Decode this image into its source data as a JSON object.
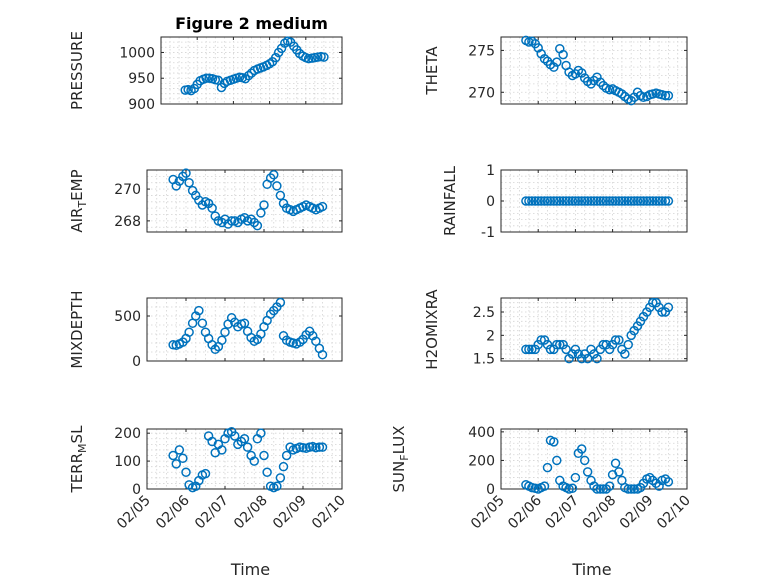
{
  "chart_data": [
    {
      "type": "scatter",
      "title": "Figure 2 medium",
      "ylabel": "PRESSURE",
      "ylabel_parts": [
        "PRESSURE"
      ],
      "xlim": [
        0,
        5
      ],
      "ylim": [
        900,
        1030
      ],
      "yticks": [
        900,
        950,
        1000
      ],
      "ytick_labels": [
        "900",
        "950",
        "1000"
      ],
      "xticks": [
        0,
        1,
        2,
        3,
        4,
        5
      ],
      "grid": true,
      "x": [
        0.67,
        0.75,
        0.83,
        0.92,
        1.0,
        1.08,
        1.17,
        1.25,
        1.33,
        1.42,
        1.5,
        1.58,
        1.67,
        1.75,
        1.83,
        1.92,
        2.0,
        2.08,
        2.17,
        2.25,
        2.33,
        2.42,
        2.5,
        2.58,
        2.67,
        2.75,
        2.83,
        2.92,
        3.0,
        3.08,
        3.17,
        3.25,
        3.33,
        3.42,
        3.5,
        3.58,
        3.67,
        3.75,
        3.83,
        3.92,
        4.0,
        4.08,
        4.17,
        4.25,
        4.33,
        4.42,
        4.5
      ],
      "y": [
        927,
        928,
        926,
        930,
        938,
        945,
        948,
        950,
        950,
        949,
        947,
        946,
        932,
        940,
        944,
        946,
        948,
        950,
        952,
        951,
        949,
        955,
        960,
        965,
        968,
        970,
        972,
        975,
        978,
        982,
        990,
        1000,
        1008,
        1018,
        1022,
        1020,
        1012,
        1005,
        998,
        993,
        990,
        988,
        989,
        990,
        991,
        992,
        991
      ]
    },
    {
      "type": "scatter",
      "ylabel": "THETA",
      "ylabel_parts": [
        "THETA"
      ],
      "xlim": [
        0,
        5
      ],
      "ylim": [
        268.6,
        276.6
      ],
      "yticks": [
        270,
        275
      ],
      "ytick_labels": [
        "270",
        "275"
      ],
      "xticks": [
        0,
        1,
        2,
        3,
        4,
        5
      ],
      "grid": true,
      "x": [
        0.67,
        0.75,
        0.83,
        0.92,
        1.0,
        1.08,
        1.17,
        1.25,
        1.33,
        1.42,
        1.5,
        1.58,
        1.67,
        1.75,
        1.83,
        1.92,
        2.0,
        2.08,
        2.17,
        2.25,
        2.33,
        2.42,
        2.5,
        2.58,
        2.67,
        2.75,
        2.83,
        2.92,
        3.0,
        3.08,
        3.17,
        3.25,
        3.33,
        3.42,
        3.5,
        3.58,
        3.67,
        3.75,
        3.83,
        3.92,
        4.0,
        4.08,
        4.17,
        4.25,
        4.33,
        4.42,
        4.5
      ],
      "y": [
        276.2,
        276.0,
        276.1,
        275.8,
        275.3,
        274.6,
        274.0,
        273.7,
        273.3,
        273.0,
        273.6,
        275.2,
        274.5,
        273.2,
        272.4,
        272.0,
        272.2,
        272.6,
        272.3,
        271.7,
        271.3,
        271.0,
        271.4,
        271.8,
        271.2,
        270.8,
        270.5,
        270.3,
        270.4,
        270.2,
        270.0,
        269.8,
        269.5,
        269.2,
        269.0,
        269.4,
        270.0,
        269.6,
        269.4,
        269.5,
        269.7,
        269.8,
        269.9,
        269.8,
        269.7,
        269.6,
        269.6
      ]
    },
    {
      "type": "scatter",
      "ylabel": "AIR_TEMP",
      "ylabel_parts": [
        "AIR",
        "T",
        "EMP"
      ],
      "xlim": [
        0,
        5
      ],
      "ylim": [
        267.3,
        271.2
      ],
      "yticks": [
        268,
        270
      ],
      "ytick_labels": [
        "268",
        "270"
      ],
      "xticks": [
        0,
        1,
        2,
        3,
        4,
        5
      ],
      "grid": true,
      "x": [
        0.67,
        0.75,
        0.83,
        0.92,
        1.0,
        1.08,
        1.17,
        1.25,
        1.33,
        1.42,
        1.5,
        1.58,
        1.67,
        1.75,
        1.83,
        1.92,
        2.0,
        2.08,
        2.17,
        2.25,
        2.33,
        2.42,
        2.5,
        2.58,
        2.67,
        2.75,
        2.83,
        2.92,
        3.0,
        3.08,
        3.17,
        3.25,
        3.33,
        3.42,
        3.5,
        3.58,
        3.67,
        3.75,
        3.83,
        3.92,
        4.0,
        4.08,
        4.17,
        4.25,
        4.33,
        4.42,
        4.5
      ],
      "y": [
        270.6,
        270.2,
        270.5,
        270.8,
        271.0,
        270.4,
        269.9,
        269.6,
        269.3,
        269.0,
        269.2,
        269.1,
        268.8,
        268.3,
        268.0,
        267.9,
        268.1,
        267.8,
        268.0,
        268.0,
        267.9,
        268.1,
        268.2,
        268.0,
        268.1,
        267.9,
        267.7,
        268.5,
        269.0,
        270.3,
        270.7,
        270.9,
        270.2,
        269.6,
        269.1,
        268.8,
        268.7,
        268.6,
        268.7,
        268.8,
        268.9,
        269.0,
        268.9,
        268.8,
        268.7,
        268.8,
        268.9
      ]
    },
    {
      "type": "scatter",
      "ylabel": "RAINFALL",
      "ylabel_parts": [
        "RAINFALL"
      ],
      "xlim": [
        0,
        5
      ],
      "ylim": [
        -1,
        1
      ],
      "yticks": [
        -1,
        0,
        1
      ],
      "ytick_labels": [
        "-1",
        "0",
        "1"
      ],
      "xticks": [
        0,
        1,
        2,
        3,
        4,
        5
      ],
      "grid": true,
      "x": [
        0.67,
        0.75,
        0.83,
        0.92,
        1.0,
        1.08,
        1.17,
        1.25,
        1.33,
        1.42,
        1.5,
        1.58,
        1.67,
        1.75,
        1.83,
        1.92,
        2.0,
        2.08,
        2.17,
        2.25,
        2.33,
        2.42,
        2.5,
        2.58,
        2.67,
        2.75,
        2.83,
        2.92,
        3.0,
        3.08,
        3.17,
        3.25,
        3.33,
        3.42,
        3.5,
        3.58,
        3.67,
        3.75,
        3.83,
        3.92,
        4.0,
        4.08,
        4.17,
        4.25,
        4.33,
        4.42,
        4.5
      ],
      "y": [
        0,
        0,
        0,
        0,
        0,
        0,
        0,
        0,
        0,
        0,
        0,
        0,
        0,
        0,
        0,
        0,
        0,
        0,
        0,
        0,
        0,
        0,
        0,
        0,
        0,
        0,
        0,
        0,
        0,
        0,
        0,
        0,
        0,
        0,
        0,
        0,
        0,
        0,
        0,
        0,
        0,
        0,
        0,
        0,
        0,
        0,
        0
      ]
    },
    {
      "type": "scatter",
      "ylabel": "MIXDEPTH",
      "ylabel_parts": [
        "MIXDEPTH"
      ],
      "xlim": [
        0,
        5
      ],
      "ylim": [
        0,
        700
      ],
      "yticks": [
        0,
        500
      ],
      "ytick_labels": [
        "0",
        "500"
      ],
      "xticks": [
        0,
        1,
        2,
        3,
        4,
        5
      ],
      "grid": true,
      "x": [
        0.67,
        0.75,
        0.83,
        0.92,
        1.0,
        1.08,
        1.17,
        1.25,
        1.33,
        1.42,
        1.5,
        1.58,
        1.67,
        1.75,
        1.83,
        1.92,
        2.0,
        2.08,
        2.17,
        2.25,
        2.33,
        2.42,
        2.5,
        2.58,
        2.67,
        2.75,
        2.83,
        2.92,
        3.0,
        3.08,
        3.17,
        3.25,
        3.33,
        3.42,
        3.5,
        3.58,
        3.67,
        3.75,
        3.83,
        3.92,
        4.0,
        4.08,
        4.17,
        4.25,
        4.33,
        4.42,
        4.5
      ],
      "y": [
        180,
        175,
        190,
        210,
        250,
        320,
        420,
        500,
        560,
        420,
        320,
        250,
        180,
        130,
        160,
        230,
        320,
        410,
        480,
        430,
        380,
        410,
        420,
        330,
        260,
        220,
        240,
        300,
        380,
        450,
        520,
        560,
        600,
        650,
        280,
        230,
        210,
        200,
        190,
        210,
        240,
        290,
        330,
        280,
        220,
        140,
        70
      ]
    },
    {
      "type": "scatter",
      "ylabel": "H2OMIXRA",
      "ylabel_parts": [
        "H2OMIXRA"
      ],
      "xlim": [
        0,
        5
      ],
      "ylim": [
        1.45,
        2.8
      ],
      "yticks": [
        1.5,
        2,
        2.5
      ],
      "ytick_labels": [
        "1.5",
        "2",
        "2.5"
      ],
      "xticks": [
        0,
        1,
        2,
        3,
        4,
        5
      ],
      "grid": true,
      "x": [
        0.67,
        0.75,
        0.83,
        0.92,
        1.0,
        1.08,
        1.17,
        1.25,
        1.33,
        1.42,
        1.5,
        1.58,
        1.67,
        1.75,
        1.83,
        1.92,
        2.0,
        2.08,
        2.17,
        2.25,
        2.33,
        2.42,
        2.5,
        2.58,
        2.67,
        2.75,
        2.83,
        2.92,
        3.0,
        3.08,
        3.17,
        3.25,
        3.33,
        3.42,
        3.5,
        3.58,
        3.67,
        3.75,
        3.83,
        3.92,
        4.0,
        4.08,
        4.17,
        4.25,
        4.33,
        4.42,
        4.5
      ],
      "y": [
        1.7,
        1.7,
        1.7,
        1.7,
        1.8,
        1.9,
        1.9,
        1.8,
        1.7,
        1.7,
        1.8,
        1.8,
        1.8,
        1.7,
        1.5,
        1.6,
        1.7,
        1.6,
        1.5,
        1.6,
        1.5,
        1.7,
        1.6,
        1.5,
        1.7,
        1.8,
        1.8,
        1.7,
        1.8,
        1.9,
        1.9,
        1.7,
        1.6,
        1.8,
        2.0,
        2.1,
        2.2,
        2.3,
        2.4,
        2.5,
        2.6,
        2.7,
        2.7,
        2.6,
        2.5,
        2.5,
        2.6
      ]
    },
    {
      "type": "scatter",
      "ylabel": "TERR_MSL",
      "ylabel_parts": [
        "TERR",
        "M",
        "SL"
      ],
      "xlim": [
        0,
        5
      ],
      "ylim": [
        0,
        215
      ],
      "yticks": [
        0,
        100,
        200
      ],
      "ytick_labels": [
        "0",
        "100",
        "200"
      ],
      "xticks": [
        0,
        1,
        2,
        3,
        4,
        5
      ],
      "grid": true,
      "x": [
        0.67,
        0.75,
        0.83,
        0.92,
        1.0,
        1.08,
        1.17,
        1.25,
        1.33,
        1.42,
        1.5,
        1.58,
        1.67,
        1.75,
        1.83,
        1.92,
        2.0,
        2.08,
        2.17,
        2.25,
        2.33,
        2.42,
        2.5,
        2.58,
        2.67,
        2.75,
        2.83,
        2.92,
        3.0,
        3.08,
        3.17,
        3.25,
        3.33,
        3.42,
        3.5,
        3.58,
        3.67,
        3.75,
        3.83,
        3.92,
        4.0,
        4.08,
        4.17,
        4.25,
        4.33,
        4.42,
        4.5
      ],
      "y": [
        120,
        90,
        140,
        110,
        60,
        15,
        5,
        10,
        30,
        50,
        55,
        190,
        170,
        130,
        160,
        140,
        180,
        200,
        205,
        190,
        160,
        170,
        180,
        150,
        120,
        100,
        180,
        200,
        120,
        60,
        10,
        5,
        10,
        40,
        80,
        120,
        150,
        140,
        145,
        150,
        148,
        146,
        150,
        152,
        148,
        150,
        150
      ]
    },
    {
      "type": "scatter",
      "ylabel": "SUN_FLUX",
      "ylabel_parts": [
        "SUN",
        "F",
        "LUX"
      ],
      "xlim": [
        0,
        5
      ],
      "ylim": [
        0,
        420
      ],
      "yticks": [
        0,
        200,
        400
      ],
      "ytick_labels": [
        "0",
        "200",
        "400"
      ],
      "xticks": [
        0,
        1,
        2,
        3,
        4,
        5
      ],
      "grid": true,
      "x": [
        0.67,
        0.75,
        0.83,
        0.92,
        1.0,
        1.08,
        1.17,
        1.25,
        1.33,
        1.42,
        1.5,
        1.58,
        1.67,
        1.75,
        1.83,
        1.92,
        2.0,
        2.08,
        2.17,
        2.25,
        2.33,
        2.42,
        2.5,
        2.58,
        2.67,
        2.75,
        2.83,
        2.92,
        3.0,
        3.08,
        3.17,
        3.25,
        3.33,
        3.42,
        3.5,
        3.58,
        3.67,
        3.75,
        3.83,
        3.92,
        4.0,
        4.08,
        4.17,
        4.25,
        4.33,
        4.42,
        4.5
      ],
      "y": [
        30,
        20,
        10,
        5,
        0,
        10,
        20,
        150,
        340,
        330,
        200,
        60,
        20,
        10,
        0,
        5,
        80,
        250,
        280,
        200,
        120,
        60,
        20,
        0,
        0,
        0,
        0,
        20,
        100,
        180,
        120,
        60,
        10,
        0,
        0,
        0,
        0,
        10,
        40,
        70,
        80,
        60,
        40,
        20,
        60,
        70,
        50
      ]
    }
  ],
  "x_tick_labels": [
    "02/05",
    "02/06",
    "02/07",
    "02/08",
    "02/09",
    "02/10"
  ],
  "x_axis_label": "Time",
  "colors": {
    "marker": "#0072bd",
    "axis": "#262626",
    "grid": "#d4d4d4"
  }
}
